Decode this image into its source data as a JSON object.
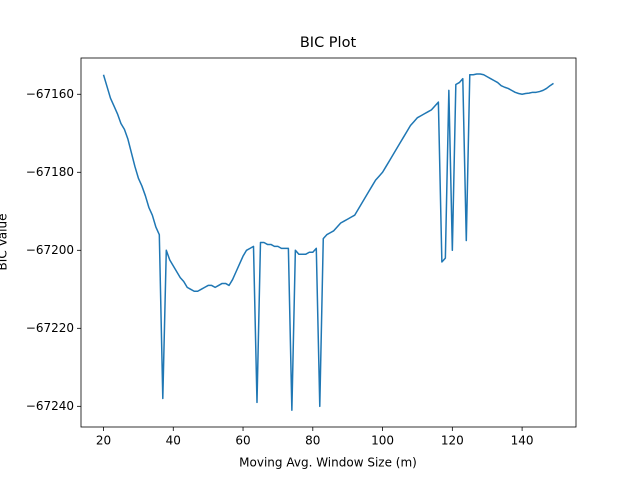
{
  "chart_data": {
    "type": "line",
    "title": "BIC Plot",
    "x_label": "Moving Avg. Window Size (m)",
    "y_label": "BIC Value",
    "x": [
      20,
      21,
      22,
      23,
      24,
      25,
      26,
      27,
      28,
      29,
      30,
      31,
      32,
      33,
      34,
      35,
      36,
      37,
      38,
      39,
      40,
      41,
      42,
      43,
      44,
      45,
      46,
      47,
      48,
      49,
      50,
      51,
      52,
      53,
      54,
      55,
      56,
      57,
      58,
      59,
      60,
      61,
      62,
      63,
      64,
      65,
      66,
      67,
      68,
      69,
      70,
      71,
      72,
      73,
      74,
      75,
      76,
      77,
      78,
      79,
      80,
      81,
      82,
      83,
      84,
      85,
      86,
      87,
      88,
      89,
      90,
      91,
      92,
      93,
      94,
      95,
      96,
      97,
      98,
      99,
      100,
      101,
      102,
      103,
      104,
      105,
      106,
      107,
      108,
      109,
      110,
      111,
      112,
      113,
      114,
      115,
      116,
      117,
      118,
      119,
      120,
      121,
      122,
      123,
      124,
      125,
      126,
      127,
      128,
      129,
      130,
      131,
      132,
      133,
      134,
      135,
      136,
      137,
      138,
      139,
      140,
      141,
      142,
      143,
      144,
      145,
      146,
      147,
      148,
      149
    ],
    "values": [
      -67155,
      -67158,
      -67161,
      -67163,
      -67165,
      -67167.5,
      -67169,
      -67171.5,
      -67175,
      -67178.5,
      -67181.5,
      -67183.5,
      -67186,
      -67189,
      -67191,
      -67194,
      -67196,
      -67238,
      -67200,
      -67202.5,
      -67204,
      -67205.5,
      -67207,
      -67208,
      -67209.5,
      -67210,
      -67210.5,
      -67210.5,
      -67210,
      -67209.5,
      -67209,
      -67209,
      -67209.5,
      -67209,
      -67208.5,
      -67208.5,
      -67209,
      -67207.5,
      -67205.5,
      -67203.5,
      -67201.5,
      -67200,
      -67199.5,
      -67199,
      -67239,
      -67198,
      -67198,
      -67198.5,
      -67198.5,
      -67199,
      -67199,
      -67199.5,
      -67199.5,
      -67199.5,
      -67241,
      -67200,
      -67201,
      -67201,
      -67201,
      -67200.5,
      -67200.5,
      -67199.5,
      -67240,
      -67197,
      -67196,
      -67195.5,
      -67195,
      -67194,
      -67193,
      -67192.5,
      -67192,
      -67191.5,
      -67191,
      -67189.5,
      -67188,
      -67186.5,
      -67185,
      -67183.5,
      -67182,
      -67181,
      -67180,
      -67178.5,
      -67177,
      -67175.5,
      -67174,
      -67172.5,
      -67171,
      -67169.5,
      -67168,
      -67167,
      -67166,
      -67165.5,
      -67165,
      -67164.5,
      -67164,
      -67163,
      -67162,
      -67203,
      -67202,
      -67159,
      -67200,
      -67157.5,
      -67157,
      -67156,
      -67197.5,
      -67155,
      -67155,
      -67154.8,
      -67154.8,
      -67155,
      -67155.5,
      -67156,
      -67156.5,
      -67157,
      -67157.8,
      -67158.2,
      -67158.5,
      -67159,
      -67159.5,
      -67159.8,
      -67160,
      -67159.8,
      -67159.7,
      -67159.5,
      -67159.5,
      -67159.3,
      -67159,
      -67158.5,
      -67157.8,
      -67157.2
    ],
    "color": "#1f77b4",
    "xlim": [
      13.55,
      155.45
    ],
    "xticks": [
      20,
      40,
      60,
      80,
      100,
      120,
      140
    ],
    "ylim": [
      -67245.3,
      -67150.7
    ],
    "yticks": [
      {
        "value": -67240,
        "label": "−67240"
      },
      {
        "value": -67220,
        "label": "−67220"
      },
      {
        "value": -67200,
        "label": "−67200"
      },
      {
        "value": -67180,
        "label": "−67180"
      },
      {
        "value": -67160,
        "label": "−67160"
      }
    ]
  }
}
